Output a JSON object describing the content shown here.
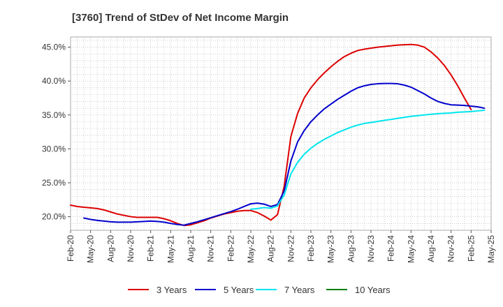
{
  "chart_data": {
    "type": "line",
    "title": "[3760]  Trend of StDev of Net Income Margin",
    "xlabel": "",
    "ylabel": "",
    "x_ticks": [
      "Feb-20",
      "May-20",
      "Aug-20",
      "Nov-20",
      "Feb-21",
      "May-21",
      "Aug-21",
      "Nov-21",
      "Feb-22",
      "May-22",
      "Aug-22",
      "Nov-22",
      "Feb-23",
      "May-23",
      "Aug-23",
      "Nov-23",
      "Feb-24",
      "May-24",
      "Aug-24",
      "Nov-24",
      "Feb-25",
      "May-25"
    ],
    "y_ticks": [
      "20.0%",
      "25.0%",
      "30.0%",
      "35.0%",
      "40.0%",
      "45.0%"
    ],
    "ylim": [
      18.0,
      46.5
    ],
    "grid": true,
    "legend_position": "bottom",
    "series": [
      {
        "name": "3 Years",
        "color": "#dd0000",
        "points": [
          [
            "Feb-20",
            21.7
          ],
          [
            "Mar-20",
            21.5
          ],
          [
            "Apr-20",
            21.4
          ],
          [
            "May-20",
            21.3
          ],
          [
            "Jun-20",
            21.2
          ],
          [
            "Jul-20",
            21.0
          ],
          [
            "Aug-20",
            20.7
          ],
          [
            "Sep-20",
            20.4
          ],
          [
            "Oct-20",
            20.2
          ],
          [
            "Nov-20",
            20.0
          ],
          [
            "Dec-20",
            19.9
          ],
          [
            "Jan-21",
            19.9
          ],
          [
            "Feb-21",
            19.9
          ],
          [
            "Mar-21",
            19.9
          ],
          [
            "Apr-21",
            19.7
          ],
          [
            "May-21",
            19.4
          ],
          [
            "Jun-21",
            19.0
          ],
          [
            "Jul-21",
            18.7
          ],
          [
            "Aug-21",
            18.8
          ],
          [
            "Sep-21",
            19.1
          ],
          [
            "Oct-21",
            19.4
          ],
          [
            "Nov-21",
            19.8
          ],
          [
            "Dec-21",
            20.1
          ],
          [
            "Jan-22",
            20.4
          ],
          [
            "Feb-22",
            20.6
          ],
          [
            "Mar-22",
            20.8
          ],
          [
            "Apr-22",
            20.9
          ],
          [
            "May-22",
            20.9
          ],
          [
            "Jun-22",
            20.6
          ],
          [
            "Jul-22",
            20.1
          ],
          [
            "Aug-22",
            19.5
          ],
          [
            "Sep-22",
            20.3
          ],
          [
            "Oct-22",
            24.5
          ],
          [
            "Nov-22",
            31.8
          ],
          [
            "Dec-22",
            35.2
          ],
          [
            "Jan-23",
            37.5
          ],
          [
            "Feb-23",
            39.0
          ],
          [
            "Mar-23",
            40.2
          ],
          [
            "Apr-23",
            41.2
          ],
          [
            "May-23",
            42.1
          ],
          [
            "Jun-23",
            42.9
          ],
          [
            "Jul-23",
            43.6
          ],
          [
            "Aug-23",
            44.1
          ],
          [
            "Sep-23",
            44.5
          ],
          [
            "Oct-23",
            44.7
          ],
          [
            "Nov-23",
            44.85
          ],
          [
            "Dec-23",
            45.0
          ],
          [
            "Jan-24",
            45.1
          ],
          [
            "Feb-24",
            45.2
          ],
          [
            "Mar-24",
            45.3
          ],
          [
            "Apr-24",
            45.35
          ],
          [
            "May-24",
            45.4
          ],
          [
            "Jun-24",
            45.3
          ],
          [
            "Jul-24",
            45.0
          ],
          [
            "Aug-24",
            44.3
          ],
          [
            "Sep-24",
            43.4
          ],
          [
            "Oct-24",
            42.3
          ],
          [
            "Nov-24",
            40.9
          ],
          [
            "Dec-24",
            39.3
          ],
          [
            "Jan-25",
            37.5
          ],
          [
            "Feb-25",
            35.8
          ]
        ]
      },
      {
        "name": "5 Years",
        "color": "#0000cc",
        "points": [
          [
            "Apr-20",
            19.8
          ],
          [
            "May-20",
            19.6
          ],
          [
            "Jun-20",
            19.45
          ],
          [
            "Jul-20",
            19.35
          ],
          [
            "Aug-20",
            19.25
          ],
          [
            "Sep-20",
            19.2
          ],
          [
            "Oct-20",
            19.2
          ],
          [
            "Nov-20",
            19.2
          ],
          [
            "Dec-20",
            19.25
          ],
          [
            "Jan-21",
            19.3
          ],
          [
            "Feb-21",
            19.35
          ],
          [
            "Mar-21",
            19.3
          ],
          [
            "Apr-21",
            19.2
          ],
          [
            "May-21",
            19.0
          ],
          [
            "Jun-21",
            18.85
          ],
          [
            "Jul-21",
            18.75
          ],
          [
            "Aug-21",
            19.0
          ],
          [
            "Sep-21",
            19.25
          ],
          [
            "Oct-21",
            19.55
          ],
          [
            "Nov-21",
            19.85
          ],
          [
            "Dec-21",
            20.15
          ],
          [
            "Jan-22",
            20.45
          ],
          [
            "Feb-22",
            20.75
          ],
          [
            "Mar-22",
            21.1
          ],
          [
            "Apr-22",
            21.5
          ],
          [
            "May-22",
            21.9
          ],
          [
            "Jun-22",
            22.0
          ],
          [
            "Jul-22",
            21.85
          ],
          [
            "Aug-22",
            21.5
          ],
          [
            "Sep-22",
            21.8
          ],
          [
            "Oct-22",
            23.8
          ],
          [
            "Nov-22",
            28.2
          ],
          [
            "Dec-22",
            31.0
          ],
          [
            "Jan-23",
            32.7
          ],
          [
            "Feb-23",
            34.0
          ],
          [
            "Mar-23",
            35.0
          ],
          [
            "Apr-23",
            35.9
          ],
          [
            "May-23",
            36.6
          ],
          [
            "Jun-23",
            37.3
          ],
          [
            "Jul-23",
            37.9
          ],
          [
            "Aug-23",
            38.5
          ],
          [
            "Sep-23",
            39.0
          ],
          [
            "Oct-23",
            39.3
          ],
          [
            "Nov-23",
            39.5
          ],
          [
            "Dec-23",
            39.6
          ],
          [
            "Jan-24",
            39.65
          ],
          [
            "Feb-24",
            39.65
          ],
          [
            "Mar-24",
            39.6
          ],
          [
            "Apr-24",
            39.4
          ],
          [
            "May-24",
            39.1
          ],
          [
            "Jun-24",
            38.6
          ],
          [
            "Jul-24",
            38.1
          ],
          [
            "Aug-24",
            37.5
          ],
          [
            "Sep-24",
            37.0
          ],
          [
            "Oct-24",
            36.7
          ],
          [
            "Nov-24",
            36.5
          ],
          [
            "Dec-24",
            36.45
          ],
          [
            "Jan-25",
            36.4
          ],
          [
            "Feb-25",
            36.3
          ],
          [
            "Mar-25",
            36.2
          ],
          [
            "Apr-25",
            36.0
          ]
        ]
      },
      {
        "name": "7 Years",
        "color": "#00e5ee",
        "points": [
          [
            "May-22",
            21.1
          ],
          [
            "Jun-22",
            21.2
          ],
          [
            "Jul-22",
            21.35
          ],
          [
            "Aug-22",
            21.25
          ],
          [
            "Sep-22",
            21.6
          ],
          [
            "Oct-22",
            23.2
          ],
          [
            "Nov-22",
            26.3
          ],
          [
            "Dec-22",
            28.0
          ],
          [
            "Jan-23",
            29.2
          ],
          [
            "Feb-23",
            30.1
          ],
          [
            "Mar-23",
            30.8
          ],
          [
            "Apr-23",
            31.4
          ],
          [
            "May-23",
            31.9
          ],
          [
            "Jun-23",
            32.4
          ],
          [
            "Jul-23",
            32.8
          ],
          [
            "Aug-23",
            33.2
          ],
          [
            "Sep-23",
            33.5
          ],
          [
            "Oct-23",
            33.75
          ],
          [
            "Nov-23",
            33.9
          ],
          [
            "Dec-23",
            34.05
          ],
          [
            "Jan-24",
            34.2
          ],
          [
            "Feb-24",
            34.35
          ],
          [
            "Mar-24",
            34.5
          ],
          [
            "Apr-24",
            34.65
          ],
          [
            "May-24",
            34.8
          ],
          [
            "Jun-24",
            34.9
          ],
          [
            "Jul-24",
            35.0
          ],
          [
            "Aug-24",
            35.1
          ],
          [
            "Sep-24",
            35.2
          ],
          [
            "Oct-24",
            35.25
          ],
          [
            "Nov-24",
            35.3
          ],
          [
            "Dec-24",
            35.4
          ],
          [
            "Jan-25",
            35.45
          ],
          [
            "Feb-25",
            35.5
          ],
          [
            "Mar-25",
            35.6
          ],
          [
            "Apr-25",
            35.7
          ]
        ]
      },
      {
        "name": "10 Years",
        "color": "#008000",
        "points": []
      }
    ]
  }
}
